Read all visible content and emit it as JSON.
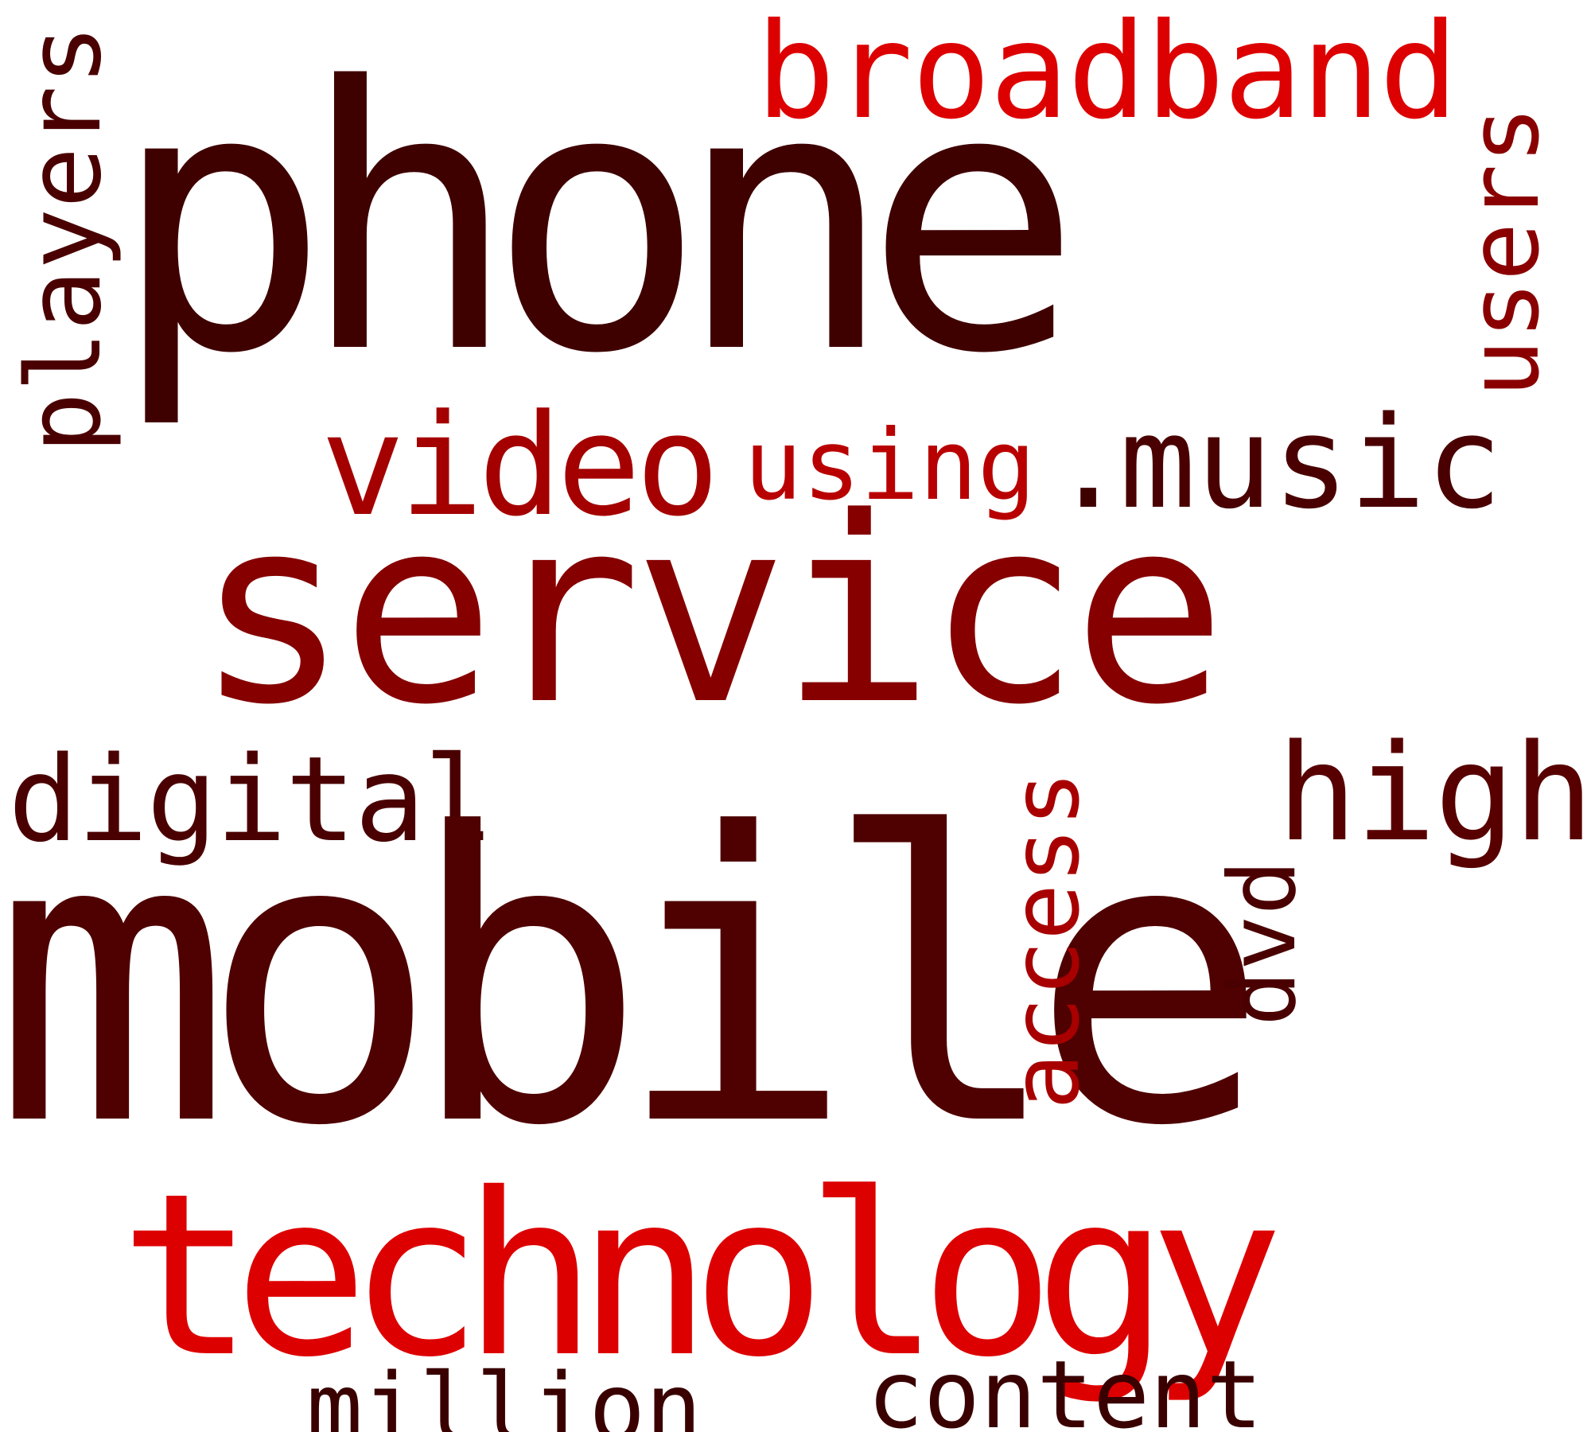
{
  "word_cloud": {
    "words": {
      "phone": "phone",
      "service": "service",
      "mobile": "mobile",
      "technology": "technology",
      "broadband": "broadband",
      "video": "video",
      "using": "using",
      "dot": ".",
      "music": "music",
      "digital": "digital",
      "high": "high",
      "million": "million",
      "content": "content",
      "players": "players",
      "users": "users",
      "access": "access",
      "dvd": "dvd"
    },
    "colors": {
      "phone": "#3f0000",
      "service": "#860000",
      "mobile": "#4f0000",
      "technology": "#dd0000",
      "broadband": "#dd0000",
      "video": "#a40000",
      "using": "#b90000",
      "dot": "#3f0000",
      "music": "#4a0000",
      "digital": "#4a0000",
      "high": "#580000",
      "million": "#3a0000",
      "content": "#3a0000",
      "players": "#4a0000",
      "users": "#8a0000",
      "access": "#a80000",
      "dvd": "#4a0000"
    }
  }
}
